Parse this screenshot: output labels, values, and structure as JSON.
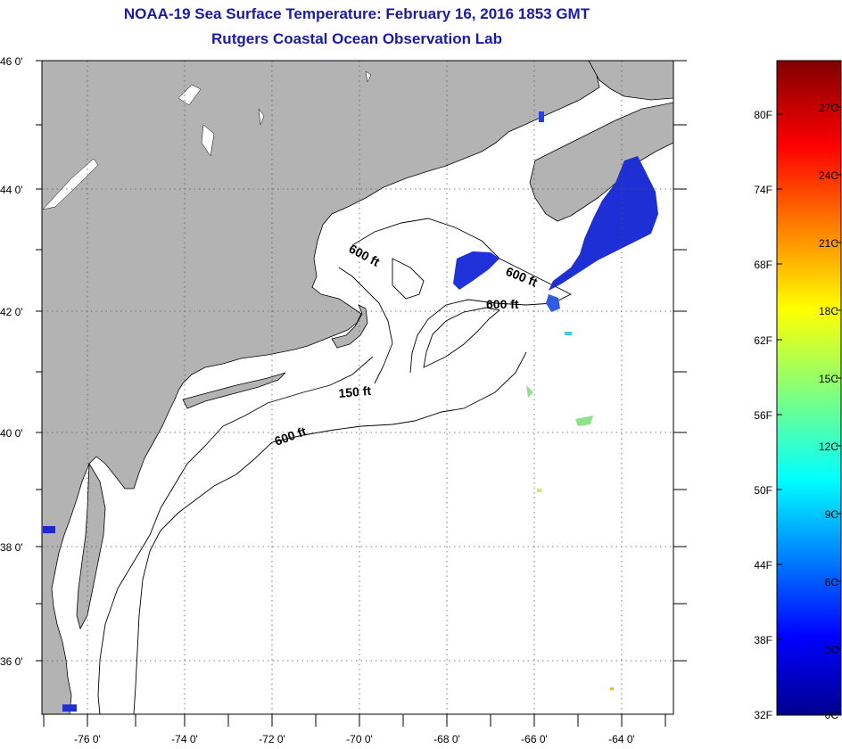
{
  "title": "NOAA-19 Sea Surface Temperature:  February 16, 2016 1853 GMT",
  "subtitle": "Rutgers Coastal Ocean Observation Lab",
  "map": {
    "lat_labels": [
      "46 0'",
      "44 0'",
      "42 0'",
      "40 0'",
      "38 0'",
      "36 0'"
    ],
    "lon_labels": [
      "-76 0'",
      "-74 0'",
      "-72 0'",
      "-70 0'",
      "-68 0'",
      "-66 0'",
      "-64 0'"
    ],
    "contour_labels": [
      "600 ft",
      "600 ft",
      "600 ft",
      "150 ft",
      "600 ft"
    ],
    "colors": {
      "land": "#b3b3b3",
      "ocean": "#ffffff",
      "grid": "#555555",
      "cold_sst": "#1e2fd6"
    }
  },
  "colorbar": {
    "fahrenheit_labels": [
      "80F",
      "74F",
      "68F",
      "62F",
      "56F",
      "50F",
      "44F",
      "38F",
      "32F"
    ],
    "celsius_labels": [
      "27C",
      "24C",
      "21C",
      "18C",
      "15C",
      "12C",
      "9C",
      "6C",
      "3C",
      "0C"
    ],
    "colormap": "jet",
    "range_c": [
      0,
      29
    ]
  }
}
